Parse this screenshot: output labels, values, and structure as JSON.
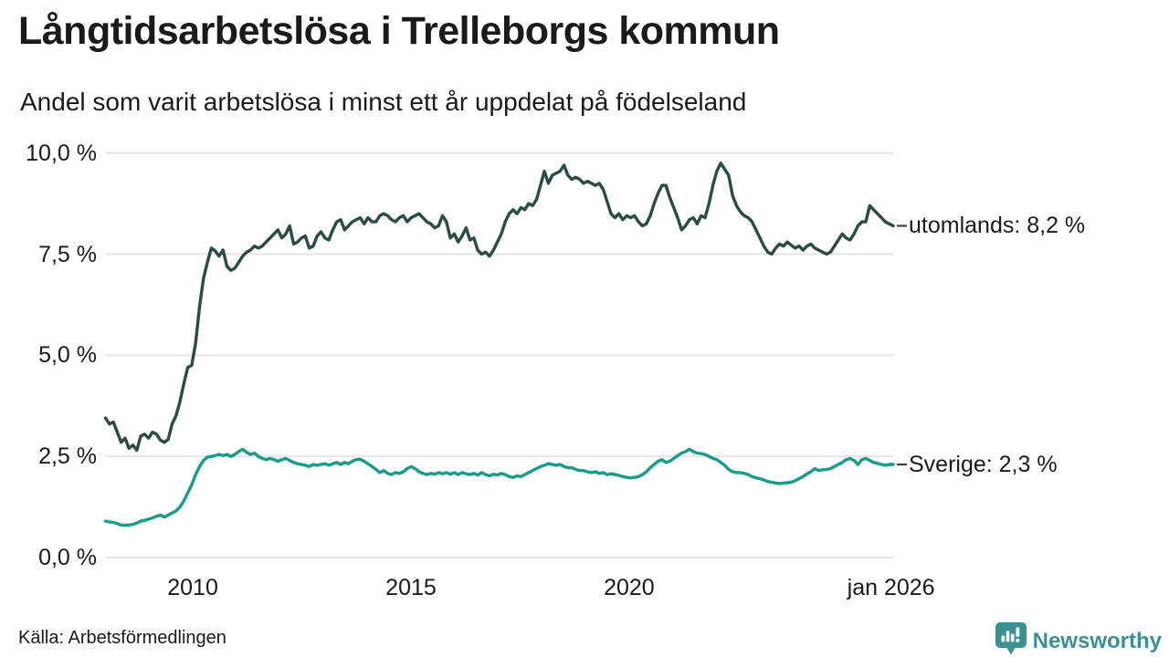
{
  "header": {
    "title": "Långtidsarbetslösa i Trelleborgs kommun",
    "subtitle": "Andel som varit arbetslösa i minst ett år uppdelat på födelseland"
  },
  "footer": {
    "source": "Källa: Arbetsförmedlingen",
    "brand": "Newsworthy"
  },
  "colors": {
    "background": "#ffffff",
    "text": "#1a1a1a",
    "grid": "#e6e6e8",
    "connector": "#404040",
    "brand": "#399290"
  },
  "chart_data": {
    "type": "line",
    "title": "Långtidsarbetslösa i Trelleborgs kommun",
    "subtitle": "Andel som varit arbetslösa i minst ett år uppdelat på födelseland",
    "unit": "%",
    "grid": true,
    "x_axis": {
      "range": [
        2008,
        2026.05
      ],
      "ticks": [
        {
          "year": 2010,
          "label": "2010"
        },
        {
          "year": 2015,
          "label": "2015"
        },
        {
          "year": 2020,
          "label": "2020"
        },
        {
          "year": 2026,
          "label": "jan 2026"
        }
      ]
    },
    "y_axis": {
      "range": [
        0,
        10
      ],
      "ticks": [
        {
          "value": 0,
          "label": "0,0 %"
        },
        {
          "value": 2.5,
          "label": "2,5 %"
        },
        {
          "value": 5,
          "label": "5,0 %"
        },
        {
          "value": 7.5,
          "label": "7,5 %"
        },
        {
          "value": 10,
          "label": "10,0 %"
        }
      ]
    },
    "series": [
      {
        "name": "utomlands",
        "color": "#2b4c44",
        "end_label": "utomlands: 8,2 %",
        "end_value": 8.2,
        "values": [
          3.45,
          3.3,
          3.35,
          3.1,
          2.85,
          2.95,
          2.7,
          2.78,
          2.65,
          3.0,
          3.05,
          2.95,
          3.1,
          3.05,
          2.9,
          2.85,
          2.92,
          3.3,
          3.5,
          3.85,
          4.3,
          4.7,
          4.75,
          5.3,
          6.2,
          6.9,
          7.3,
          7.65,
          7.58,
          7.45,
          7.6,
          7.2,
          7.1,
          7.15,
          7.3,
          7.45,
          7.55,
          7.6,
          7.7,
          7.65,
          7.7,
          7.8,
          7.9,
          8.0,
          8.1,
          7.9,
          8.0,
          8.2,
          7.75,
          7.8,
          7.9,
          7.95,
          7.65,
          7.7,
          7.95,
          8.05,
          7.9,
          7.85,
          8.1,
          8.3,
          8.35,
          8.1,
          8.2,
          8.3,
          8.35,
          8.4,
          8.25,
          8.4,
          8.3,
          8.3,
          8.45,
          8.5,
          8.45,
          8.35,
          8.3,
          8.4,
          8.45,
          8.3,
          8.4,
          8.45,
          8.5,
          8.4,
          8.3,
          8.25,
          8.15,
          8.2,
          8.45,
          8.3,
          7.9,
          8.0,
          7.8,
          7.95,
          8.15,
          7.85,
          7.9,
          7.6,
          7.5,
          7.55,
          7.45,
          7.6,
          7.8,
          8.0,
          8.3,
          8.5,
          8.6,
          8.5,
          8.65,
          8.6,
          8.75,
          8.7,
          8.85,
          9.2,
          9.55,
          9.25,
          9.45,
          9.5,
          9.55,
          9.7,
          9.45,
          9.35,
          9.4,
          9.35,
          9.25,
          9.3,
          9.25,
          9.2,
          9.25,
          9.1,
          8.8,
          8.5,
          8.4,
          8.5,
          8.35,
          8.45,
          8.4,
          8.45,
          8.3,
          8.2,
          8.25,
          8.45,
          8.75,
          9.0,
          9.2,
          9.2,
          8.9,
          8.65,
          8.4,
          8.1,
          8.2,
          8.35,
          8.4,
          8.25,
          8.45,
          8.4,
          8.75,
          9.2,
          9.55,
          9.75,
          9.6,
          9.45,
          8.95,
          8.7,
          8.55,
          8.45,
          8.4,
          8.3,
          8.1,
          7.9,
          7.7,
          7.55,
          7.5,
          7.65,
          7.75,
          7.7,
          7.8,
          7.72,
          7.65,
          7.7,
          7.6,
          7.7,
          7.75,
          7.65,
          7.6,
          7.55,
          7.5,
          7.55,
          7.7,
          7.85,
          8.0,
          7.9,
          7.85,
          8.0,
          8.2,
          8.3,
          8.3,
          8.7,
          8.6,
          8.5,
          8.4,
          8.3,
          8.25,
          8.2
        ]
      },
      {
        "name": "Sverige",
        "color": "#199c8c",
        "end_label": "Sverige: 2,3 %",
        "end_value": 2.3,
        "values": [
          0.9,
          0.88,
          0.87,
          0.84,
          0.8,
          0.8,
          0.8,
          0.82,
          0.85,
          0.9,
          0.92,
          0.95,
          0.98,
          1.02,
          1.05,
          1.0,
          1.05,
          1.1,
          1.15,
          1.25,
          1.4,
          1.6,
          1.8,
          2.05,
          2.25,
          2.4,
          2.48,
          2.5,
          2.52,
          2.55,
          2.52,
          2.55,
          2.5,
          2.55,
          2.62,
          2.68,
          2.6,
          2.55,
          2.58,
          2.5,
          2.45,
          2.42,
          2.45,
          2.42,
          2.38,
          2.42,
          2.45,
          2.4,
          2.35,
          2.32,
          2.3,
          2.28,
          2.25,
          2.3,
          2.28,
          2.3,
          2.32,
          2.28,
          2.32,
          2.35,
          2.3,
          2.35,
          2.32,
          2.38,
          2.42,
          2.43,
          2.38,
          2.32,
          2.25,
          2.18,
          2.1,
          2.15,
          2.08,
          2.05,
          2.1,
          2.08,
          2.12,
          2.2,
          2.25,
          2.2,
          2.12,
          2.08,
          2.05,
          2.08,
          2.06,
          2.1,
          2.07,
          2.1,
          2.06,
          2.1,
          2.05,
          2.1,
          2.07,
          2.05,
          2.08,
          2.04,
          2.1,
          2.05,
          2.02,
          2.06,
          2.04,
          2.08,
          2.05,
          2.0,
          1.98,
          2.02,
          2.0,
          2.05,
          2.1,
          2.15,
          2.2,
          2.25,
          2.28,
          2.32,
          2.3,
          2.28,
          2.3,
          2.25,
          2.22,
          2.22,
          2.18,
          2.15,
          2.15,
          2.12,
          2.1,
          2.12,
          2.08,
          2.1,
          2.05,
          2.07,
          2.05,
          2.03,
          2.0,
          1.98,
          1.97,
          1.98,
          2.0,
          2.05,
          2.12,
          2.22,
          2.3,
          2.38,
          2.42,
          2.35,
          2.38,
          2.45,
          2.52,
          2.58,
          2.62,
          2.68,
          2.62,
          2.58,
          2.57,
          2.55,
          2.5,
          2.45,
          2.42,
          2.35,
          2.28,
          2.18,
          2.12,
          2.1,
          2.1,
          2.08,
          2.05,
          2.0,
          1.97,
          1.95,
          1.92,
          1.88,
          1.86,
          1.84,
          1.83,
          1.84,
          1.85,
          1.86,
          1.9,
          1.95,
          2.0,
          2.07,
          2.12,
          2.2,
          2.15,
          2.17,
          2.18,
          2.2,
          2.25,
          2.3,
          2.35,
          2.42,
          2.45,
          2.4,
          2.3,
          2.42,
          2.45,
          2.4,
          2.35,
          2.33,
          2.3,
          2.28,
          2.3,
          2.3
        ]
      }
    ]
  }
}
